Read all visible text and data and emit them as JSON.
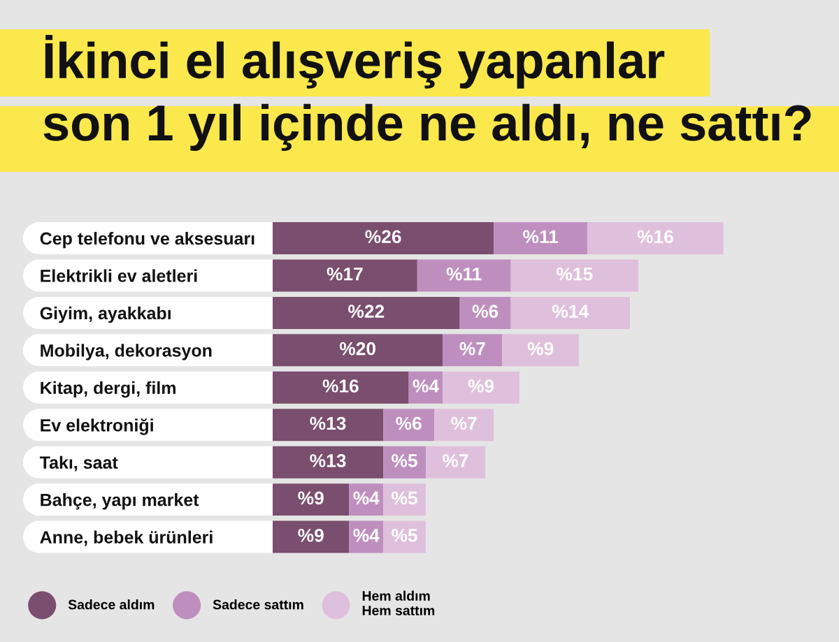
{
  "chart_data": {
    "type": "bar",
    "orientation": "horizontal",
    "stacked": true,
    "title": "İkinci el alışveriş yapanlar\nson 1 yıl içinde ne aldı, ne sattı?",
    "categories": [
      "Cep telefonu ve aksesuarı",
      "Elektrikli ev aletleri",
      "Giyim, ayakkabı",
      "Mobilya, dekorasyon",
      "Kitap, dergi, film",
      "Ev elektroniği",
      "Takı, saat",
      "Bahçe, yapı market",
      "Anne, bebek ürünleri"
    ],
    "series": [
      {
        "name": "Sadece aldım",
        "color": "#7a4e6e",
        "values": [
          26,
          17,
          22,
          20,
          16,
          13,
          13,
          9,
          9
        ],
        "value_labels": [
          "%26",
          "%17",
          "%22",
          "%20",
          "%16",
          "%13",
          "%13",
          "%9",
          "%9"
        ]
      },
      {
        "name": "Sadece sattım",
        "color": "#be8fbe",
        "values": [
          11,
          11,
          6,
          7,
          4,
          6,
          5,
          4,
          4
        ],
        "value_labels": [
          "%11",
          "%11",
          "%6",
          "%7",
          "%4",
          "%6",
          "%5",
          "%4",
          "%4"
        ]
      },
      {
        "name": "Hem aldım\nHem sattım",
        "color": "#dfc0dc",
        "values": [
          16,
          15,
          14,
          9,
          9,
          7,
          7,
          5,
          5
        ],
        "value_labels": [
          "%16",
          "%15",
          "%14",
          "%9",
          "%9",
          "%7",
          "%7",
          "%5",
          "%5"
        ]
      }
    ],
    "tick_labels": "y",
    "legend": "bottom"
  }
}
